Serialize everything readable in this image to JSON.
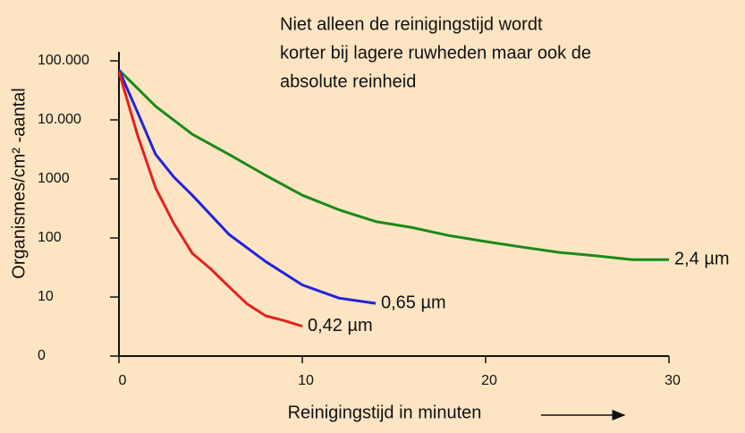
{
  "chart_data": {
    "type": "line",
    "annotation": [
      "Niet alleen de reinigingstijd wordt",
      "korter bij lagere ruwheden maar ook de",
      "absolute reinheid"
    ],
    "x_label": "Reinigingstijd in minuten",
    "y_label": "Organismes/cm² -aantal",
    "log_y": true,
    "xlim": [
      0,
      30
    ],
    "xticks": [
      0,
      10,
      20,
      30
    ],
    "ylim": [
      1,
      100000
    ],
    "yticks": [
      {
        "value": 1,
        "label": "0"
      },
      {
        "value": 10,
        "label": "10"
      },
      {
        "value": 100,
        "label": "100"
      },
      {
        "value": 1000,
        "label": "1000"
      },
      {
        "value": 10000,
        "label": "10.000"
      },
      {
        "value": 100000,
        "label": "100.000"
      }
    ],
    "series": [
      {
        "name": "2,4 µm",
        "color": "#1a8a1a",
        "x": [
          0,
          2,
          4,
          6,
          8,
          10,
          12,
          14,
          16,
          18,
          20,
          22,
          24,
          26,
          28,
          30
        ],
        "values": [
          70000,
          17000,
          5700,
          2600,
          1150,
          530,
          300,
          190,
          150,
          110,
          87,
          70,
          57,
          50,
          43,
          43
        ]
      },
      {
        "name": "0,65 µm",
        "color": "#2222e0",
        "x": [
          0,
          1,
          2,
          3,
          4,
          6,
          8,
          10,
          12,
          14
        ],
        "values": [
          70000,
          13800,
          2600,
          1070,
          530,
          115,
          40,
          16,
          9.6,
          7.8
        ]
      },
      {
        "name": "0,42 µm",
        "color": "#e52020",
        "x": [
          0,
          1,
          2,
          3,
          4,
          5,
          6,
          7,
          8,
          9,
          10
        ],
        "values": [
          65000,
          5700,
          700,
          175,
          55,
          30,
          15,
          7.6,
          4.8,
          4,
          3.2
        ]
      }
    ]
  }
}
